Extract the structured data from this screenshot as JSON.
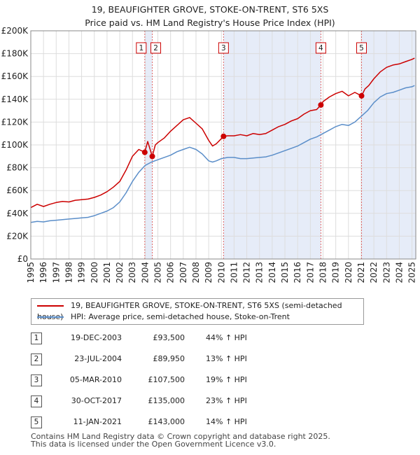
{
  "chart_data": {
    "type": "line",
    "title": "19, BEAUFIGHTER GROVE, STOKE-ON-TRENT, ST6 5XS",
    "subtitle": "Price paid vs. HM Land Registry's House Price Index (HPI)",
    "xlim": [
      1995,
      2025.3
    ],
    "ylim": [
      0,
      200000
    ],
    "y_ticks": [
      0,
      20000,
      40000,
      60000,
      80000,
      100000,
      120000,
      140000,
      160000,
      180000,
      200000
    ],
    "y_tick_labels": [
      "£0",
      "£20K",
      "£40K",
      "£60K",
      "£80K",
      "£100K",
      "£120K",
      "£140K",
      "£160K",
      "£180K",
      "£200K"
    ],
    "x_ticks": [
      1995,
      1996,
      1997,
      1998,
      1999,
      2000,
      2001,
      2002,
      2003,
      2004,
      2005,
      2006,
      2007,
      2008,
      2009,
      2010,
      2011,
      2012,
      2013,
      2014,
      2015,
      2016,
      2017,
      2018,
      2019,
      2020,
      2021,
      2022,
      2023,
      2024,
      2025
    ],
    "grid": true,
    "shaded_regions": [
      [
        2003.97,
        2004.56
      ],
      [
        2010.17,
        2017.83
      ],
      [
        2021.03,
        2025.3
      ]
    ],
    "series": [
      {
        "name": "19, BEAUFIGHTER GROVE, STOKE-ON-TRENT, ST6 5XS (semi-detached house)",
        "color": "#cc0000",
        "x": [
          1995,
          1995.5,
          1996,
          1996.5,
          1997,
          1997.5,
          1998,
          1998.5,
          1999,
          1999.5,
          2000,
          2000.5,
          2001,
          2001.5,
          2002,
          2002.5,
          2003,
          2003.5,
          2003.97,
          2004.2,
          2004.56,
          2004.8,
          2005,
          2005.5,
          2006,
          2006.5,
          2007,
          2007.5,
          2008,
          2008.5,
          2009,
          2009.3,
          2009.6,
          2010.17,
          2010.5,
          2011,
          2011.5,
          2012,
          2012.5,
          2013,
          2013.5,
          2014,
          2014.5,
          2015,
          2015.5,
          2016,
          2016.5,
          2017,
          2017.5,
          2017.83,
          2018,
          2018.5,
          2019,
          2019.5,
          2020,
          2020.5,
          2021.03,
          2021.3,
          2021.6,
          2022,
          2022.5,
          2023,
          2023.5,
          2024,
          2024.5,
          2025,
          2025.2
        ],
        "values": [
          45000,
          48000,
          46000,
          48000,
          49500,
          50500,
          50000,
          51500,
          52000,
          52500,
          54000,
          56000,
          59000,
          63000,
          68000,
          78000,
          90000,
          96000,
          93500,
          103000,
          89950,
          100000,
          102000,
          106000,
          112000,
          117000,
          122000,
          124000,
          119000,
          114000,
          104000,
          99000,
          101000,
          107500,
          108000,
          108000,
          109000,
          108000,
          110000,
          109000,
          110000,
          113000,
          116000,
          118000,
          121000,
          123000,
          127000,
          130000,
          131000,
          135000,
          138000,
          142000,
          145000,
          147000,
          143000,
          146000,
          143000,
          149000,
          152000,
          158000,
          164000,
          168000,
          170000,
          171000,
          173000,
          175000,
          176000
        ]
      },
      {
        "name": "HPI: Average price, semi-detached house, Stoke-on-Trent",
        "color": "#5b8ec9",
        "x": [
          1995,
          1995.5,
          1996,
          1996.5,
          1997,
          1997.5,
          1998,
          1998.5,
          1999,
          1999.5,
          2000,
          2000.5,
          2001,
          2001.5,
          2002,
          2002.5,
          2003,
          2003.5,
          2004,
          2004.5,
          2005,
          2005.5,
          2006,
          2006.5,
          2007,
          2007.5,
          2008,
          2008.5,
          2009,
          2009.3,
          2009.6,
          2010,
          2010.5,
          2011,
          2011.5,
          2012,
          2012.5,
          2013,
          2013.5,
          2014,
          2014.5,
          2015,
          2015.5,
          2016,
          2016.5,
          2017,
          2017.5,
          2018,
          2018.5,
          2019,
          2019.5,
          2020,
          2020.5,
          2021,
          2021.5,
          2022,
          2022.5,
          2023,
          2023.5,
          2024,
          2024.5,
          2025,
          2025.2
        ],
        "values": [
          32000,
          33000,
          32500,
          33500,
          34000,
          34500,
          35000,
          35500,
          36000,
          36500,
          38000,
          40000,
          42000,
          45000,
          50000,
          58000,
          68000,
          76000,
          82000,
          85000,
          87000,
          89000,
          91000,
          94000,
          96000,
          98000,
          96000,
          92000,
          86000,
          85000,
          86000,
          88000,
          89000,
          89000,
          88000,
          88000,
          88500,
          89000,
          89500,
          91000,
          93000,
          95000,
          97000,
          99000,
          102000,
          105000,
          107000,
          110000,
          113000,
          116000,
          118000,
          117000,
          120000,
          125000,
          130000,
          137000,
          142000,
          145000,
          146000,
          148000,
          150000,
          151000,
          152000
        ]
      }
    ],
    "annotations": [
      {
        "label": "1",
        "x": 2003.97,
        "y": 93500
      },
      {
        "label": "2",
        "x": 2004.56,
        "y": 89950
      },
      {
        "label": "3",
        "x": 2010.17,
        "y": 107500
      },
      {
        "label": "4",
        "x": 2017.83,
        "y": 135000
      },
      {
        "label": "5",
        "x": 2021.03,
        "y": 143000
      }
    ]
  },
  "legend": {
    "items": [
      {
        "label": "19, BEAUFIGHTER GROVE, STOKE-ON-TRENT, ST6 5XS (semi-detached house)",
        "color": "#cc0000"
      },
      {
        "label": "HPI: Average price, semi-detached house, Stoke-on-Trent",
        "color": "#5b8ec9"
      }
    ]
  },
  "sales": [
    {
      "num": "1",
      "date": "19-DEC-2003",
      "price": "£93,500",
      "hpi": "44% ↑ HPI"
    },
    {
      "num": "2",
      "date": "23-JUL-2004",
      "price": "£89,950",
      "hpi": "13% ↑ HPI"
    },
    {
      "num": "3",
      "date": "05-MAR-2010",
      "price": "£107,500",
      "hpi": "19% ↑ HPI"
    },
    {
      "num": "4",
      "date": "30-OCT-2017",
      "price": "£135,000",
      "hpi": "23% ↑ HPI"
    },
    {
      "num": "5",
      "date": "11-JAN-2021",
      "price": "£143,000",
      "hpi": "14% ↑ HPI"
    }
  ],
  "footer": {
    "line1": "Contains HM Land Registry data © Crown copyright and database right 2025.",
    "line2": "This data is licensed under the Open Government Licence v3.0."
  }
}
